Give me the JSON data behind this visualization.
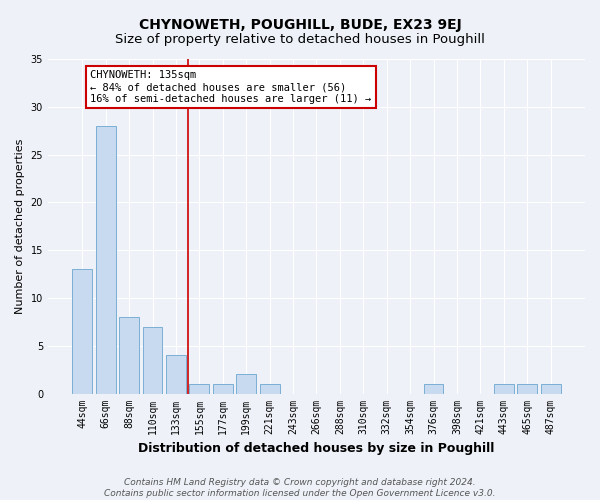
{
  "title": "CHYNOWETH, POUGHILL, BUDE, EX23 9EJ",
  "subtitle": "Size of property relative to detached houses in Poughill",
  "xlabel": "Distribution of detached houses by size in Poughill",
  "ylabel": "Number of detached properties",
  "categories": [
    "44sqm",
    "66sqm",
    "88sqm",
    "110sqm",
    "133sqm",
    "155sqm",
    "177sqm",
    "199sqm",
    "221sqm",
    "243sqm",
    "266sqm",
    "288sqm",
    "310sqm",
    "332sqm",
    "354sqm",
    "376sqm",
    "398sqm",
    "421sqm",
    "443sqm",
    "465sqm",
    "487sqm"
  ],
  "values": [
    13,
    28,
    8,
    7,
    4,
    1,
    1,
    2,
    1,
    0,
    0,
    0,
    0,
    0,
    0,
    1,
    0,
    0,
    1,
    1,
    1
  ],
  "bar_color": "#c8daf0",
  "bar_edge_color": "#7aafd4",
  "property_index": 4,
  "annotation_text": "CHYNOWETH: 135sqm\n← 84% of detached houses are smaller (56)\n16% of semi-detached houses are larger (11) →",
  "annotation_box_color": "#ffffff",
  "annotation_box_edge_color": "#cc0000",
  "vline_color": "#cc0000",
  "ylim": [
    0,
    35
  ],
  "yticks": [
    0,
    5,
    10,
    15,
    20,
    25,
    30,
    35
  ],
  "footer_line1": "Contains HM Land Registry data © Crown copyright and database right 2024.",
  "footer_line2": "Contains public sector information licensed under the Open Government Licence v3.0.",
  "background_color": "#eef2f8",
  "title_fontsize": 10,
  "subtitle_fontsize": 9.5,
  "xlabel_fontsize": 9,
  "ylabel_fontsize": 8,
  "tick_fontsize": 7,
  "annotation_fontsize": 7.5,
  "footer_fontsize": 6.5
}
